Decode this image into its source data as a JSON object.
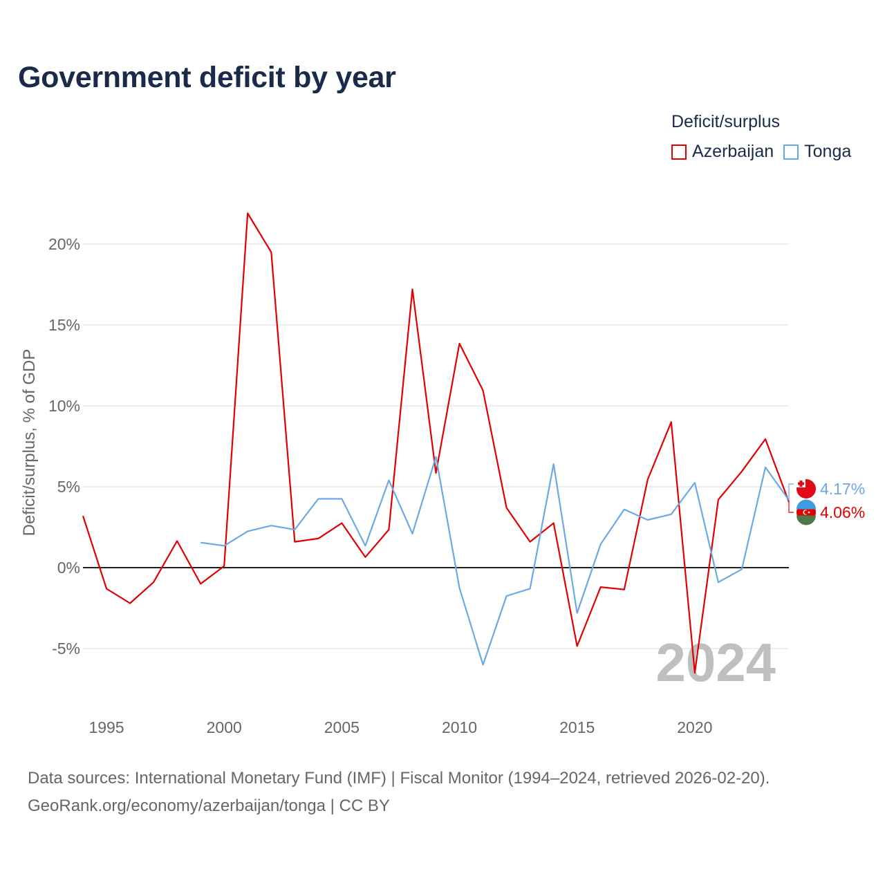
{
  "chart_data": {
    "type": "line",
    "title": "Government deficit by year",
    "ylabel": "Deficit/surplus, % of GDP",
    "xlabel": "",
    "xlim": [
      1994,
      2024
    ],
    "ylim": [
      -8.5,
      23
    ],
    "y_ticks": [
      -5,
      0,
      5,
      10,
      15,
      20
    ],
    "y_tick_labels": [
      "-5%",
      "0%",
      "5%",
      "10%",
      "15%",
      "20%"
    ],
    "x_ticks": [
      1995,
      2000,
      2005,
      2010,
      2015,
      2020
    ],
    "x_tick_labels": [
      "1995",
      "2000",
      "2005",
      "2010",
      "2015",
      "2020"
    ],
    "legend_title": "Deficit/surplus",
    "legend_position": "top-right",
    "current_year": "2024",
    "series": [
      {
        "name": "Azerbaijan",
        "color": "#e00000",
        "x": [
          1994,
          1995,
          1996,
          1997,
          1998,
          1999,
          2000,
          2001,
          2002,
          2003,
          2004,
          2005,
          2006,
          2007,
          2008,
          2009,
          2010,
          2011,
          2012,
          2013,
          2014,
          2015,
          2016,
          2017,
          2018,
          2019,
          2020,
          2021,
          2022,
          2023,
          2024
        ],
        "values": [
          3.2,
          -1.3,
          -2.2,
          -0.9,
          1.65,
          -1.0,
          0.1,
          21.9,
          19.5,
          1.6,
          1.8,
          2.75,
          0.65,
          2.35,
          17.2,
          5.85,
          13.85,
          10.95,
          3.7,
          1.6,
          2.75,
          -4.85,
          -1.2,
          -1.35,
          5.45,
          9.0,
          -6.5,
          4.2,
          5.95,
          7.95,
          4.06
        ],
        "end_label": "4.06%",
        "flag": "azerbaijan-flag-icon"
      },
      {
        "name": "Tonga",
        "color": "#6aa8e6",
        "x": [
          1999,
          2000,
          2001,
          2002,
          2003,
          2004,
          2005,
          2006,
          2007,
          2008,
          2009,
          2010,
          2011,
          2012,
          2013,
          2014,
          2015,
          2016,
          2017,
          2018,
          2019,
          2020,
          2021,
          2022,
          2023,
          2024
        ],
        "values": [
          1.55,
          1.35,
          2.25,
          2.6,
          2.35,
          4.25,
          4.25,
          1.35,
          5.4,
          2.1,
          6.85,
          -1.25,
          -6.0,
          -1.75,
          -1.3,
          6.4,
          -2.8,
          1.45,
          3.6,
          2.95,
          3.3,
          5.25,
          -0.9,
          -0.1,
          6.2,
          4.17
        ],
        "end_label": "4.17%",
        "flag": "tonga-flag-icon"
      }
    ]
  },
  "footer": {
    "sources": "Data sources: International Monetary Fund (IMF) | Fiscal Monitor (1994–2024, retrieved 2026-02-20).",
    "credit": "GeoRank.org/economy/azerbaijan/tonga | CC BY"
  }
}
